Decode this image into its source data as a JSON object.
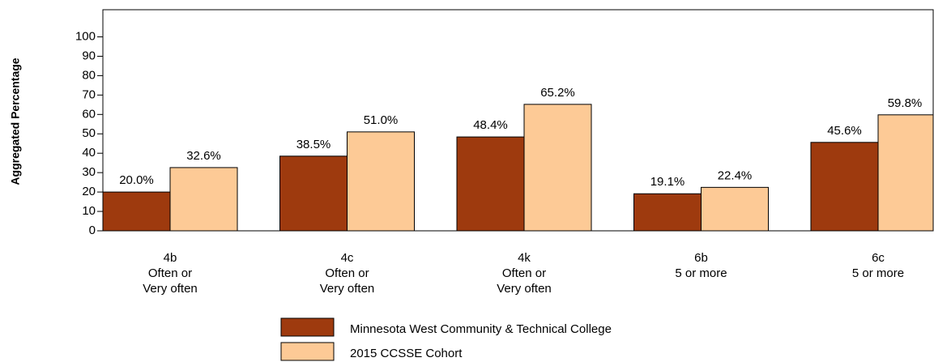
{
  "chart_data": {
    "type": "bar",
    "y_label": "Aggregated Percentage",
    "categories": [
      [
        "4b",
        "Often or",
        "Very often"
      ],
      [
        "4c",
        "Often or",
        "Very often"
      ],
      [
        "4k",
        "Often or",
        "Very often"
      ],
      [
        "6b",
        "5 or more"
      ],
      [
        "6c",
        "5 or more"
      ]
    ],
    "series": [
      {
        "name": "Minnesota West Community & Technical College",
        "color": "#9e3a0e",
        "values": [
          20.0,
          38.5,
          48.4,
          19.1,
          45.6
        ],
        "value_labels": [
          "20.0%",
          "38.5%",
          "48.4%",
          "19.1%",
          "45.6%"
        ]
      },
      {
        "name": "2015 CCSSE Cohort",
        "color": "#fdca96",
        "values": [
          32.6,
          51.0,
          65.2,
          22.4,
          59.8
        ],
        "value_labels": [
          "32.6%",
          "51.0%",
          "65.2%",
          "22.4%",
          "59.8%"
        ]
      }
    ],
    "ylim": [
      0,
      114
    ],
    "yticks": [
      0,
      10,
      20,
      30,
      40,
      50,
      60,
      70,
      80,
      90,
      100
    ]
  }
}
